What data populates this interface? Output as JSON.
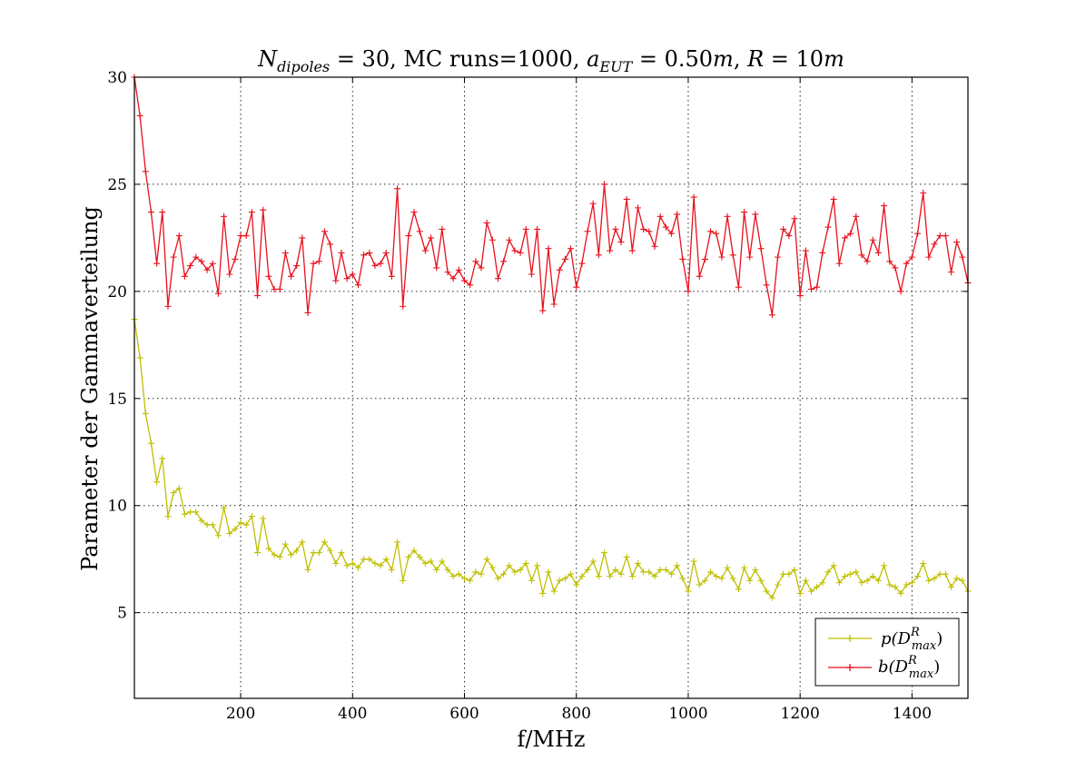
{
  "chart_data": {
    "type": "line",
    "title": "N_dipoles = 30, MC runs=1000, a_EUT = 0.50m, R = 10m",
    "title_parts": {
      "n_main": "N",
      "n_sub": "dipoles",
      "n_value": " = 30, ",
      "mc_text": "MC runs=1000, ",
      "a_main": "a",
      "a_sub": "EUT",
      "a_value": " = 0.50",
      "a_unit": "m",
      "sep": ", ",
      "r_main": "R",
      "r_value": " = 10",
      "r_unit": "m"
    },
    "xlabel": "f/MHz",
    "ylabel": "Parameter der Gammaverteilung",
    "xlim": [
      10,
      1500
    ],
    "ylim": [
      1,
      30
    ],
    "x_ticks": [
      200,
      400,
      600,
      800,
      1000,
      1200,
      1400
    ],
    "y_ticks": [
      5,
      10,
      15,
      20,
      25,
      30
    ],
    "x_tick_labels": [
      "200",
      "400",
      "600",
      "800",
      "1000",
      "1200",
      "1400"
    ],
    "y_tick_labels": [
      "5",
      "10",
      "15",
      "20",
      "25",
      "30"
    ],
    "grid": true,
    "legend_position": "bottom-right",
    "x_step_mhz": 10,
    "series": [
      {
        "name": "p(D^R_max)",
        "legend": {
          "main": "p(D",
          "sup": "R",
          "sub": "max",
          "close": ")"
        },
        "color": "#bfbf00",
        "marker": "+",
        "values": [
          18.7,
          16.9,
          14.3,
          12.9,
          11.1,
          12.2,
          9.5,
          10.6,
          10.8,
          9.6,
          9.7,
          9.7,
          9.3,
          9.1,
          9.1,
          8.6,
          9.9,
          8.7,
          8.9,
          9.2,
          9.1,
          9.5,
          7.8,
          9.4,
          8.0,
          7.7,
          7.6,
          8.2,
          7.7,
          7.9,
          8.3,
          7.0,
          7.8,
          7.8,
          8.3,
          7.9,
          7.3,
          7.8,
          7.2,
          7.3,
          7.1,
          7.5,
          7.5,
          7.3,
          7.2,
          7.5,
          7.0,
          8.3,
          6.5,
          7.6,
          7.9,
          7.6,
          7.3,
          7.4,
          7.0,
          7.4,
          7.0,
          6.7,
          6.8,
          6.6,
          6.5,
          6.9,
          6.8,
          7.5,
          7.1,
          6.6,
          6.8,
          7.2,
          6.9,
          7.0,
          7.3,
          6.5,
          7.2,
          5.9,
          6.9,
          6.0,
          6.5,
          6.6,
          6.8,
          6.3,
          6.7,
          7.0,
          7.4,
          6.7,
          7.8,
          6.7,
          7.0,
          6.8,
          7.6,
          6.7,
          7.3,
          6.9,
          6.9,
          6.7,
          7.0,
          7.0,
          6.8,
          7.2,
          6.6,
          6.0,
          7.4,
          6.3,
          6.5,
          6.9,
          6.7,
          6.6,
          7.1,
          6.6,
          6.1,
          7.1,
          6.5,
          7.0,
          6.5,
          6.0,
          5.7,
          6.3,
          6.8,
          6.8,
          7.0,
          5.9,
          6.5,
          6.0,
          6.2,
          6.4,
          6.9,
          7.2,
          6.4,
          6.7,
          6.8,
          6.9,
          6.4,
          6.5,
          6.7,
          6.5,
          7.2,
          6.3,
          6.2,
          5.9,
          6.3,
          6.4,
          6.7,
          7.3,
          6.5,
          6.6,
          6.8,
          6.8,
          6.2,
          6.6,
          6.5,
          6.0
        ]
      },
      {
        "name": "b(D^R_max)",
        "legend": {
          "main": "b(D",
          "sup": "R",
          "sub": "max",
          "close": ")"
        },
        "color": "#e8101c",
        "marker": "+",
        "values": [
          30.0,
          28.2,
          25.6,
          23.7,
          21.3,
          23.7,
          19.3,
          21.6,
          22.6,
          20.7,
          21.2,
          21.6,
          21.4,
          21.0,
          21.3,
          19.9,
          23.5,
          20.8,
          21.5,
          22.6,
          22.6,
          23.7,
          19.8,
          23.8,
          20.7,
          20.1,
          20.1,
          21.8,
          20.7,
          21.2,
          22.5,
          19.0,
          21.3,
          21.4,
          22.8,
          22.2,
          20.5,
          21.8,
          20.6,
          20.8,
          20.3,
          21.7,
          21.8,
          21.2,
          21.3,
          21.8,
          20.7,
          24.8,
          19.3,
          22.6,
          23.7,
          22.8,
          21.9,
          22.5,
          21.1,
          22.9,
          20.9,
          20.6,
          21.0,
          20.5,
          20.3,
          21.4,
          21.1,
          23.2,
          22.4,
          20.6,
          21.4,
          22.4,
          21.9,
          21.8,
          22.9,
          20.8,
          22.9,
          19.1,
          22.0,
          19.4,
          21.0,
          21.5,
          22.0,
          20.2,
          21.3,
          22.8,
          24.1,
          21.7,
          25.0,
          21.9,
          22.9,
          22.3,
          24.3,
          21.9,
          23.9,
          22.9,
          22.8,
          22.1,
          23.5,
          23.0,
          22.7,
          23.6,
          21.5,
          20.0,
          24.4,
          20.7,
          21.5,
          22.8,
          22.7,
          21.6,
          23.5,
          21.7,
          20.2,
          23.7,
          21.6,
          23.6,
          22.0,
          20.3,
          18.9,
          21.6,
          22.9,
          22.6,
          23.4,
          19.8,
          21.9,
          20.1,
          20.2,
          21.8,
          23.0,
          24.3,
          21.3,
          22.5,
          22.7,
          23.5,
          21.7,
          21.4,
          22.4,
          21.8,
          24.0,
          21.4,
          21.1,
          20.0,
          21.3,
          21.6,
          22.7,
          24.6,
          21.6,
          22.2,
          22.6,
          22.6,
          20.9,
          22.3,
          21.6,
          20.4
        ]
      }
    ]
  }
}
